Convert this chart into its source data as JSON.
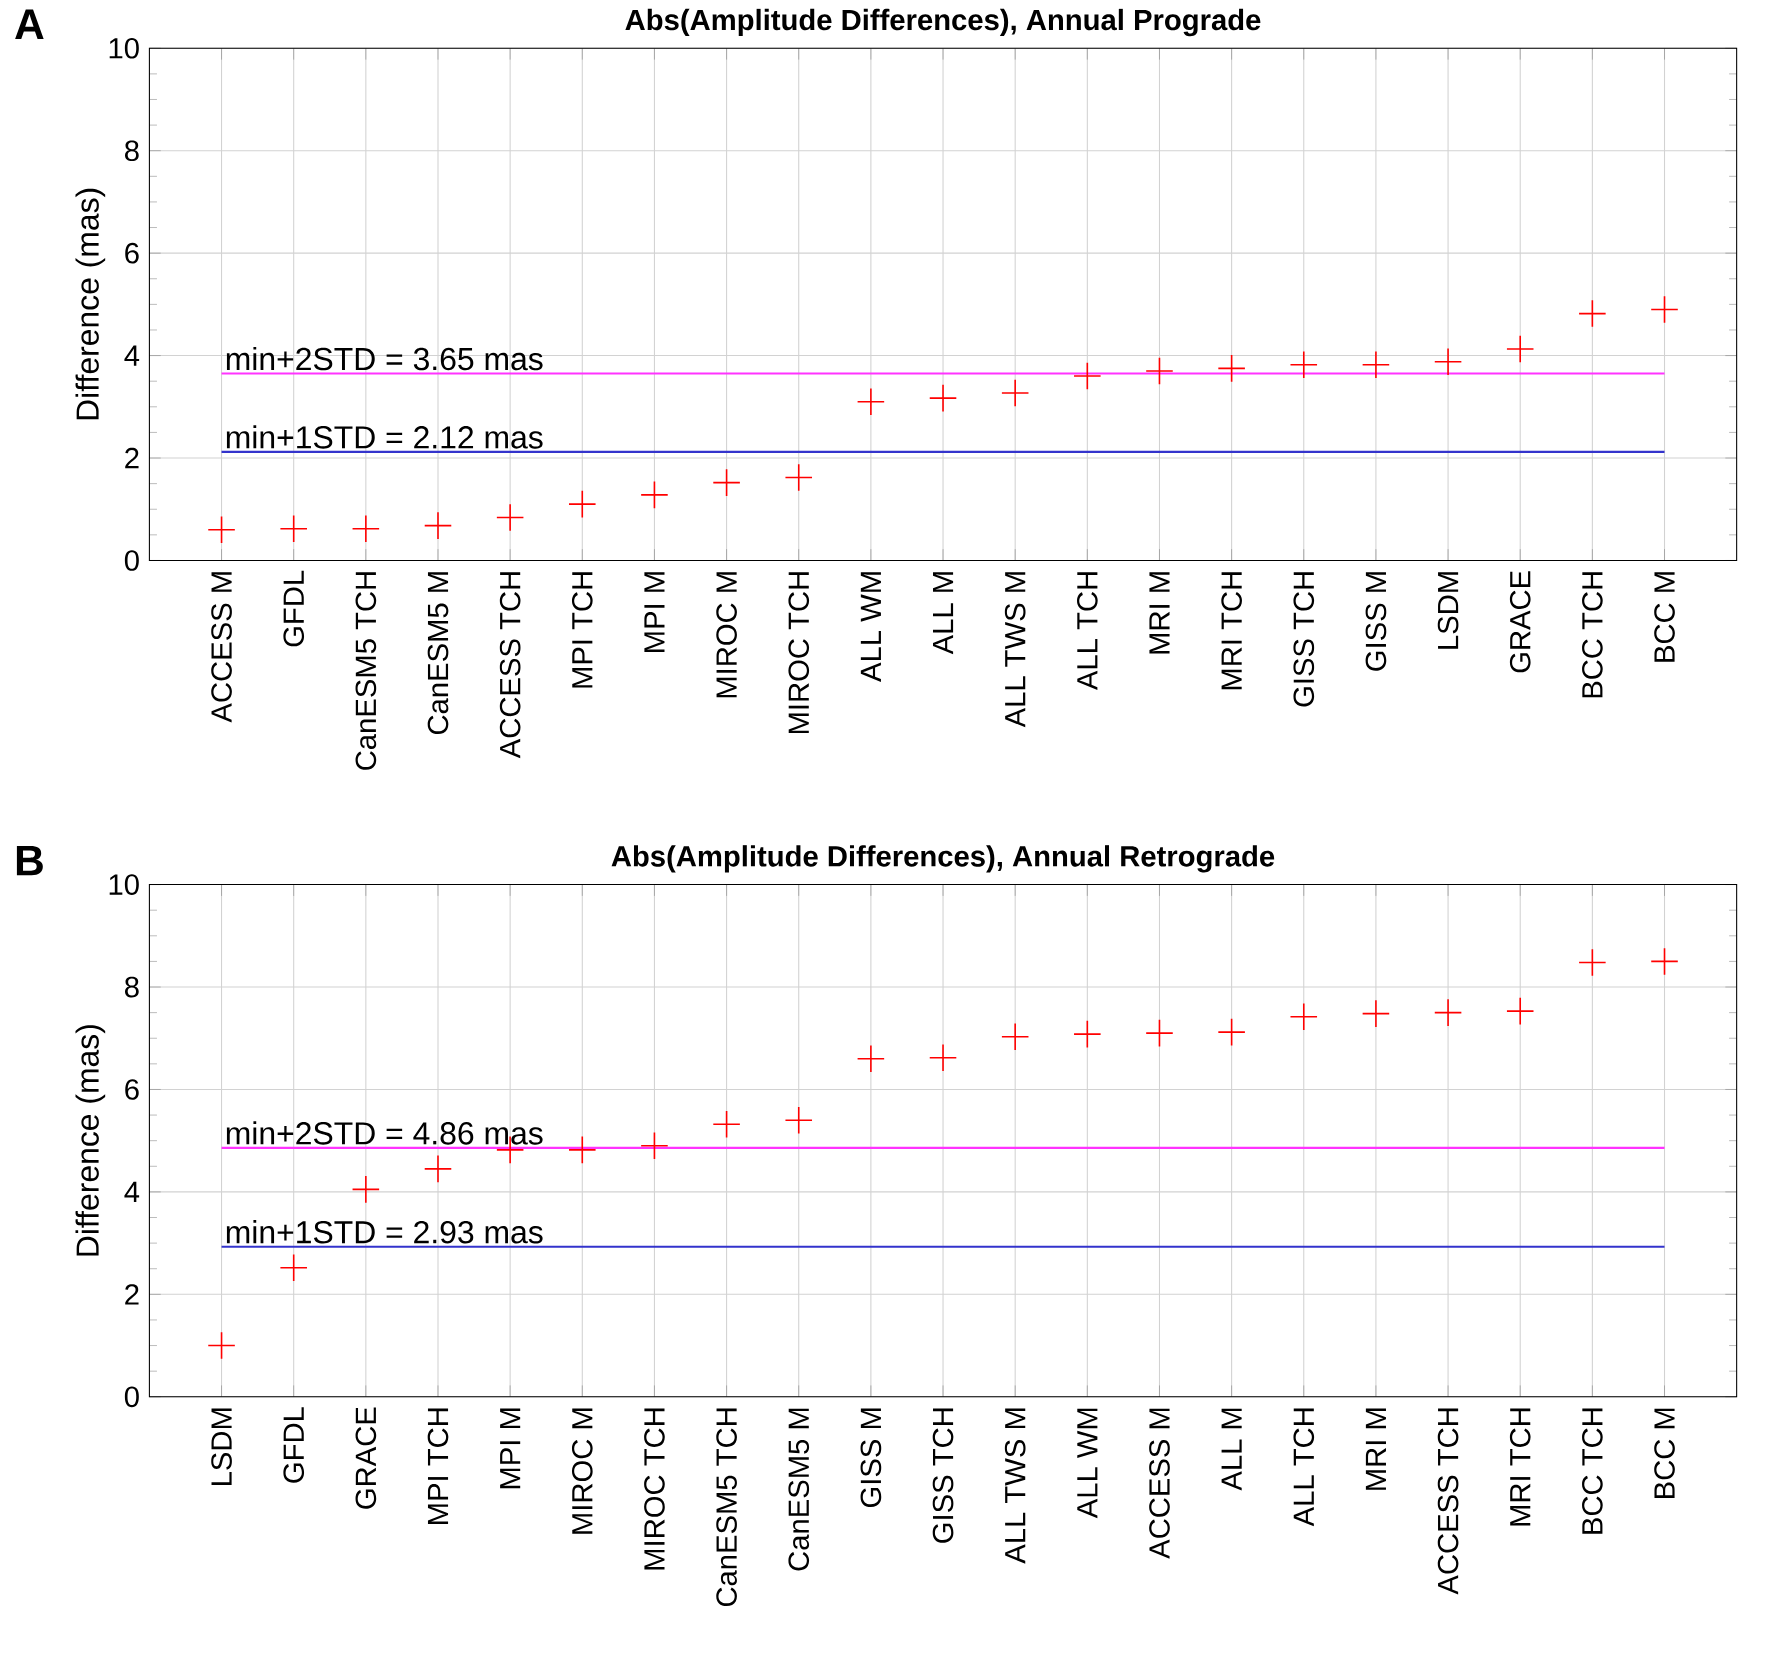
{
  "chart_data": [
    {
      "type": "scatter",
      "title": "Abs(Amplitude Differences), Annual Prograde",
      "ylabel": "Difference (mas)",
      "categories": [
        "ACCESS M",
        "GFDL",
        "CanESM5 TCH",
        "CanESM5 M",
        "ACCESS TCH",
        "MPI TCH",
        "MPI M",
        "MIROC M",
        "MIROC TCH",
        "ALL WM",
        "ALL M",
        "ALL TWS M",
        "ALL TCH",
        "MRI M",
        "MRI TCH",
        "GISS TCH",
        "GISS M",
        "LSDM",
        "GRACE",
        "BCC TCH",
        "BCC M"
      ],
      "values": [
        0.6,
        0.62,
        0.62,
        0.68,
        0.84,
        1.1,
        1.28,
        1.52,
        1.62,
        3.1,
        3.17,
        3.27,
        3.6,
        3.7,
        3.75,
        3.82,
        3.82,
        3.88,
        4.13,
        4.82,
        4.9
      ],
      "color": "#ff0000",
      "marker": "cross",
      "ylim": [
        0,
        10
      ],
      "yticks": [
        0,
        2,
        4,
        6,
        8,
        10
      ],
      "grid": true,
      "ref_lines": [
        {
          "axis": "y",
          "value": 3.65,
          "label": "min+2STD = 3.65 mas",
          "color": "#ff33ff"
        },
        {
          "axis": "y",
          "value": 2.12,
          "label": "min+1STD = 2.12 mas",
          "color": "#3333cc"
        }
      ],
      "annotations": [
        "A"
      ]
    },
    {
      "type": "scatter",
      "title": "Abs(Amplitude Differences), Annual Retrograde",
      "ylabel": "Difference (mas)",
      "categories": [
        "LSDM",
        "GFDL",
        "GRACE",
        "MPI TCH",
        "MPI M",
        "MIROC M",
        "MIROC TCH",
        "CanESM5 TCH",
        "CanESM5 M",
        "GISS M",
        "GISS TCH",
        "ALL TWS M",
        "ALL WM",
        "ACCESS M",
        "ALL M",
        "ALL TCH",
        "MRI M",
        "ACCESS TCH",
        "MRI TCH",
        "BCC TCH",
        "BCC M"
      ],
      "values": [
        1.0,
        2.52,
        4.05,
        4.45,
        4.82,
        4.82,
        4.9,
        5.32,
        5.4,
        6.6,
        6.62,
        7.03,
        7.08,
        7.1,
        7.12,
        7.42,
        7.48,
        7.5,
        7.53,
        8.48,
        8.5
      ],
      "color": "#ff0000",
      "marker": "cross",
      "ylim": [
        0,
        10
      ],
      "yticks": [
        0,
        2,
        4,
        6,
        8,
        10
      ],
      "grid": true,
      "ref_lines": [
        {
          "axis": "y",
          "value": 4.86,
          "label": "min+2STD = 4.86 mas",
          "color": "#ff33ff"
        },
        {
          "axis": "y",
          "value": 2.93,
          "label": "min+1STD = 2.93 mas",
          "color": "#3333cc"
        }
      ],
      "annotations": [
        "B"
      ]
    }
  ]
}
